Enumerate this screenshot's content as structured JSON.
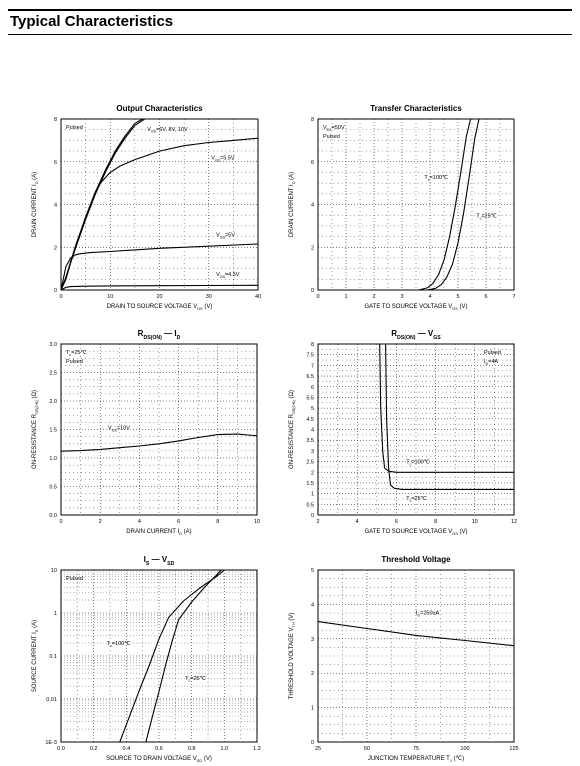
{
  "page": {
    "title": "Typical Characteristics"
  },
  "chart_data": [
    {
      "id": "output",
      "type": "line",
      "title": "Output Characteristics",
      "xlabel": "DRAIN TO SOURCE VOLTAGE",
      "xlabel_sym": "V",
      "xlabel_sub": "DS",
      "xlabel_unit": "(V)",
      "ylabel": "DRAIN CURRENT",
      "ylabel_sym": "I",
      "ylabel_sub": "D",
      "ylabel_unit": "(A)",
      "xlim": [
        0,
        40
      ],
      "ylim": [
        0,
        8
      ],
      "xticks": [
        "0",
        "10",
        "20",
        "30",
        "40"
      ],
      "yticks": [
        "0",
        "2",
        "4",
        "6",
        "8"
      ],
      "note_lines": [
        "Pulsed"
      ],
      "series": [
        {
          "name": "V_GS=6V, 8V, 10V",
          "x": [
            0,
            1,
            2,
            3,
            5,
            7,
            9,
            11,
            13,
            15,
            17
          ],
          "y": [
            0,
            0.5,
            1.3,
            2.0,
            3.3,
            4.5,
            5.5,
            6.4,
            7.1,
            7.7,
            8.0
          ]
        },
        {
          "name": "",
          "x": [
            0,
            1,
            2,
            3,
            5,
            7,
            9,
            11,
            13,
            15,
            16.5
          ],
          "y": [
            0,
            0.55,
            1.35,
            2.1,
            3.4,
            4.6,
            5.6,
            6.5,
            7.2,
            7.8,
            8.0
          ]
        },
        {
          "name": "V_GS=5.5V",
          "x": [
            0,
            1,
            2,
            3,
            4,
            5,
            6,
            7,
            8,
            10,
            12,
            15,
            20,
            25,
            30,
            35,
            40
          ],
          "y": [
            0,
            0.6,
            1.3,
            2.0,
            2.7,
            3.4,
            4.0,
            4.6,
            5.0,
            5.5,
            5.8,
            6.1,
            6.5,
            6.75,
            6.9,
            7.0,
            7.1
          ]
        },
        {
          "name": "V_GS=5V",
          "x": [
            0,
            1,
            2,
            3,
            4,
            6,
            10,
            20,
            30,
            40
          ],
          "y": [
            0,
            1.1,
            1.5,
            1.65,
            1.7,
            1.75,
            1.8,
            1.95,
            2.05,
            2.15
          ]
        },
        {
          "name": "V_GS=4.5V",
          "x": [
            0,
            1,
            2,
            5,
            10,
            20,
            30,
            40
          ],
          "y": [
            0,
            0.12,
            0.16,
            0.18,
            0.19,
            0.2,
            0.21,
            0.22
          ]
        }
      ],
      "labels": [
        {
          "text": "V_GS=6V, 8V, 10V",
          "x": 17.5,
          "y": 7.45
        },
        {
          "text": "V_GS=5.5V",
          "x": 30.5,
          "y": 6.1
        },
        {
          "text": "V_GS=5V",
          "x": 31.5,
          "y": 2.5
        },
        {
          "text": "V_GS=4.5V",
          "x": 31.5,
          "y": 0.65
        }
      ]
    },
    {
      "id": "transfer",
      "type": "line",
      "title": "Transfer Characteristics",
      "xlabel": "GATE TO SOURCE VOLTAGE",
      "xlabel_sym": "V",
      "xlabel_sub": "GS",
      "xlabel_unit": "(V)",
      "ylabel": "DRAIN CURRENT",
      "ylabel_sym": "I",
      "ylabel_sub": "D",
      "ylabel_unit": "(A)",
      "xlim": [
        0,
        7
      ],
      "ylim": [
        0,
        8
      ],
      "xticks": [
        "0",
        "1",
        "2",
        "3",
        "4",
        "5",
        "6",
        "7"
      ],
      "yticks": [
        "0",
        "2",
        "4",
        "6",
        "8"
      ],
      "note_lines": [
        "V_DS=50V",
        "Pulsed"
      ],
      "series": [
        {
          "name": "T_c=100℃",
          "x": [
            3.6,
            3.9,
            4.1,
            4.3,
            4.5,
            4.7,
            4.9,
            5.1,
            5.3,
            5.45
          ],
          "y": [
            0,
            0.1,
            0.3,
            0.7,
            1.4,
            2.5,
            3.9,
            5.5,
            7.2,
            8.0
          ]
        },
        {
          "name": "T_c=25℃",
          "x": [
            3.9,
            4.2,
            4.4,
            4.6,
            4.8,
            5.0,
            5.2,
            5.4,
            5.6,
            5.75
          ],
          "y": [
            0,
            0.08,
            0.25,
            0.6,
            1.2,
            2.2,
            3.6,
            5.3,
            7.1,
            8.0
          ]
        }
      ],
      "labels": [
        {
          "text": "T_c=100℃",
          "x": 3.8,
          "y": 5.2
        },
        {
          "text": "T_c=25℃",
          "x": 5.65,
          "y": 3.4
        }
      ]
    },
    {
      "id": "rdson_id",
      "type": "line",
      "title": "R_DS(ON) — I_D",
      "xlabel": "DRAIN CURRENT",
      "xlabel_sym": "I",
      "xlabel_sub": "D",
      "xlabel_unit": "(A)",
      "ylabel": "ON-RESISTANCE",
      "ylabel_sym": "R",
      "ylabel_sub": "DS(ON)",
      "ylabel_unit": "(Ω)",
      "xlim": [
        0,
        10
      ],
      "ylim": [
        0,
        3.0
      ],
      "xticks": [
        "0",
        "2",
        "4",
        "6",
        "8",
        "10"
      ],
      "yticks": [
        "0.0",
        "0.5",
        "1.0",
        "1.5",
        "2.0",
        "2.5",
        "3.0"
      ],
      "note_lines": [
        "T_c=25℃",
        "Pulsed"
      ],
      "series": [
        {
          "name": "V_GS=10V",
          "x": [
            0,
            1,
            2,
            3,
            4,
            5,
            6,
            7,
            8,
            9,
            10
          ],
          "y": [
            1.12,
            1.13,
            1.15,
            1.18,
            1.21,
            1.25,
            1.3,
            1.36,
            1.41,
            1.42,
            1.39
          ]
        }
      ],
      "labels": [
        {
          "text": "V_GS=10V",
          "x": 2.4,
          "y": 1.5
        }
      ]
    },
    {
      "id": "rdson_vgs",
      "type": "line",
      "title": "R_DS(ON) — V_GS",
      "xlabel": "GATE TO SOURCE VOLTAGE",
      "xlabel_sym": "V",
      "xlabel_sub": "GS",
      "xlabel_unit": "(V)",
      "ylabel": "ON-RESISTANCE",
      "ylabel_sym": "R",
      "ylabel_sub": "DS(ON)",
      "ylabel_unit": "(Ω)",
      "xlim": [
        2,
        12
      ],
      "ylim": [
        0,
        8
      ],
      "xticks": [
        "2",
        "4",
        "6",
        "8",
        "10",
        "12"
      ],
      "yticks": [
        "0",
        "0.5",
        "1",
        "1.5",
        "2",
        "2.5",
        "3",
        "3.5",
        "4",
        "4.5",
        "5",
        "5.5",
        "6",
        "6.5",
        "7",
        "7.5",
        "8"
      ],
      "note_lines": [
        "Pulsed",
        "I_D=4A"
      ],
      "series": [
        {
          "name": "T_c=100℃",
          "x": [
            5.15,
            5.2,
            5.3,
            5.4,
            5.6,
            6,
            8,
            10,
            12
          ],
          "y": [
            8.0,
            5.0,
            3.0,
            2.2,
            2.05,
            2.0,
            2.0,
            2.0,
            2.0
          ]
        },
        {
          "name": "T_c=25℃",
          "x": [
            5.45,
            5.5,
            5.6,
            5.7,
            5.9,
            6.3,
            8,
            10,
            12
          ],
          "y": [
            8.0,
            4.5,
            2.2,
            1.4,
            1.25,
            1.2,
            1.2,
            1.2,
            1.2
          ]
        }
      ],
      "labels": [
        {
          "text": "T_c=100℃",
          "x": 6.5,
          "y": 2.4
        },
        {
          "text": "T_c=25℃",
          "x": 6.5,
          "y": 0.7
        }
      ]
    },
    {
      "id": "is_vsd",
      "type": "line",
      "title": "I_S — V_SD",
      "xlabel": "SOURCE TO DRAIN VOLTAGE",
      "xlabel_sym": "V",
      "xlabel_sub": "SD",
      "xlabel_unit": "(V)",
      "ylabel": "SOURCE CURRENT",
      "ylabel_sym": "I",
      "ylabel_sub": "S",
      "ylabel_unit": "(A)",
      "xlim": [
        0,
        1.2
      ],
      "ylim": [
        0.001,
        10
      ],
      "yscale": "log",
      "xticks": [
        "0.0",
        "0.2",
        "0.4",
        "0.6",
        "0.8",
        "1.0",
        "1.2"
      ],
      "yticks": [
        "1E-3",
        "0.01",
        "0.1",
        "1",
        "10"
      ],
      "note_lines": [
        "Pulsed"
      ],
      "series": [
        {
          "name": "T_c=100℃",
          "x": [
            0.36,
            0.42,
            0.48,
            0.54,
            0.6,
            0.66,
            0.75,
            0.85,
            0.95,
            1.0
          ],
          "y": [
            0.001,
            0.004,
            0.016,
            0.06,
            0.25,
            0.8,
            1.9,
            3.8,
            7.0,
            10
          ]
        },
        {
          "name": "T_c=25℃",
          "x": [
            0.52,
            0.56,
            0.6,
            0.64,
            0.68,
            0.72,
            0.8,
            0.88,
            0.95,
            0.98
          ],
          "y": [
            0.001,
            0.004,
            0.015,
            0.06,
            0.22,
            0.7,
            1.8,
            4.0,
            7.5,
            10
          ]
        }
      ],
      "labels": [
        {
          "text": "T_c=100℃",
          "x": 0.28,
          "y": 0.18
        },
        {
          "text": "T_c=25℃",
          "x": 0.76,
          "y": 0.028
        }
      ]
    },
    {
      "id": "threshold",
      "type": "line",
      "title": "Threshold Voltage",
      "xlabel": "JUNCTION TEMPERATURE",
      "xlabel_sym": "T",
      "xlabel_sub": "J",
      "xlabel_unit": "(℃)",
      "ylabel": "THRESHOLD VOLTAGE",
      "ylabel_sym": "V",
      "ylabel_sub": "TH",
      "ylabel_unit": "(V)",
      "xlim": [
        25,
        125
      ],
      "ylim": [
        0,
        5
      ],
      "xticks": [
        "25",
        "50",
        "75",
        "100",
        "125"
      ],
      "yticks": [
        "0",
        "1",
        "2",
        "3",
        "4",
        "5"
      ],
      "note_lines": [],
      "series": [
        {
          "name": "I_D=250uA",
          "x": [
            25,
            50,
            75,
            100,
            125
          ],
          "y": [
            3.5,
            3.3,
            3.1,
            2.95,
            2.8
          ]
        }
      ],
      "labels": [
        {
          "text": "I_D=250uA",
          "x": 75,
          "y": 3.7
        }
      ]
    }
  ]
}
